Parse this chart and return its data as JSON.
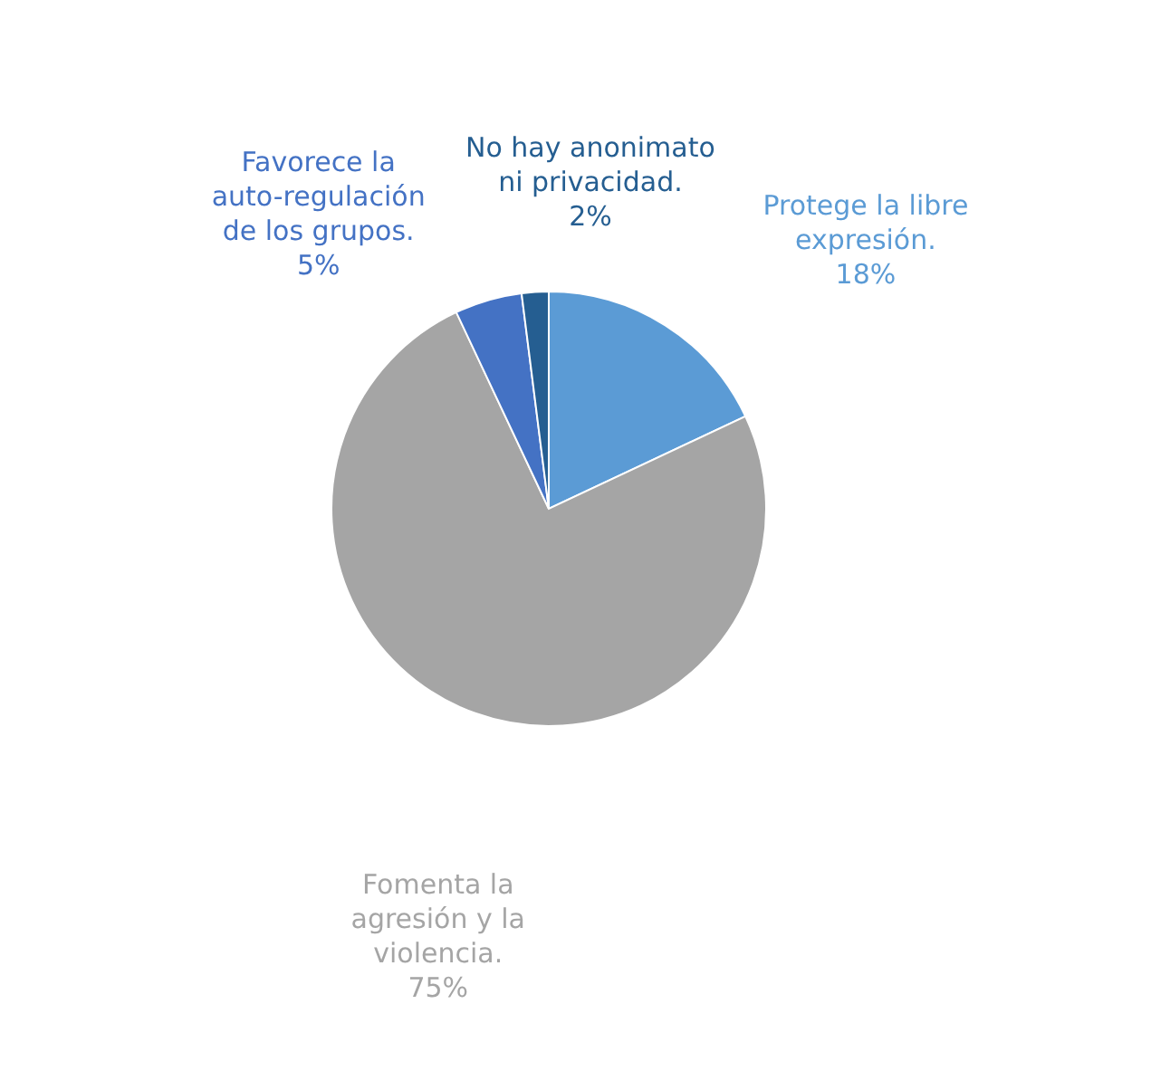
{
  "chart_data": {
    "type": "pie",
    "categories": [
      "Protege la libre expresión.",
      "Fomenta la agresión y la violencia.",
      "Favorece la auto-regulación de los grupos.",
      "No hay anonimato ni privacidad."
    ],
    "values": [
      18,
      75,
      5,
      2
    ],
    "colors": [
      "#5b9bd5",
      "#a5a5a5",
      "#4472c4",
      "#255e91"
    ],
    "value_labels": [
      "18%",
      "75%",
      "5%",
      "2%"
    ],
    "legend": false
  }
}
